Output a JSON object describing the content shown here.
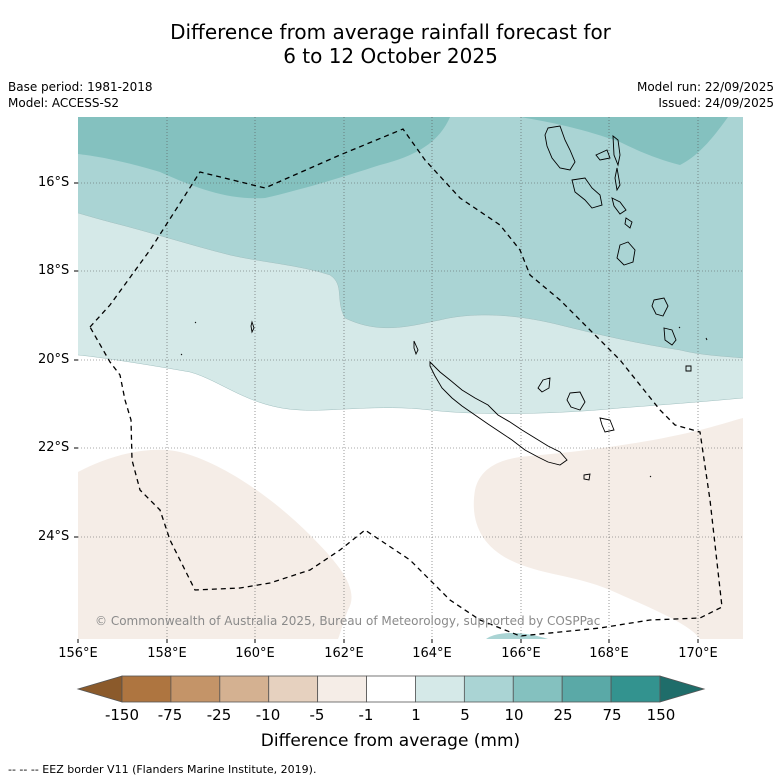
{
  "title_line1": "Difference from average rainfall forecast for",
  "title_line2": "6 to 12 October 2025",
  "base_period": "Base period: 1981-2018",
  "model": "Model: ACCESS-S2",
  "model_run": "Model run: 22/09/2025",
  "issued": "Issued: 24/09/2025",
  "lat_ticks": [
    "16°S",
    "18°S",
    "20°S",
    "22°S",
    "24°S"
  ],
  "lon_ticks": [
    "156°E",
    "158°E",
    "160°E",
    "162°E",
    "164°E",
    "166°E",
    "168°E",
    "170°E"
  ],
  "copyright": "© Commonwealth of Australia 2025, Bureau of Meteorology, supported by COSPPac",
  "colorbar": {
    "labels": [
      "-150",
      "-75",
      "-25",
      "-10",
      "-5",
      "-1",
      "1",
      "5",
      "10",
      "25",
      "75",
      "150"
    ],
    "colors": [
      "#8b5a2b",
      "#ae7540",
      "#c49468",
      "#d4b191",
      "#e6d1bf",
      "#f5ede7",
      "#ffffff",
      "#d5e9e8",
      "#aad4d4",
      "#84c1bf",
      "#5aa9a7",
      "#33938f",
      "#1f6d6a"
    ],
    "title": "Difference from average (mm)"
  },
  "eez_note": "--  --  -- EEZ border V11 (Flanders Marine Institute, 2019)."
}
